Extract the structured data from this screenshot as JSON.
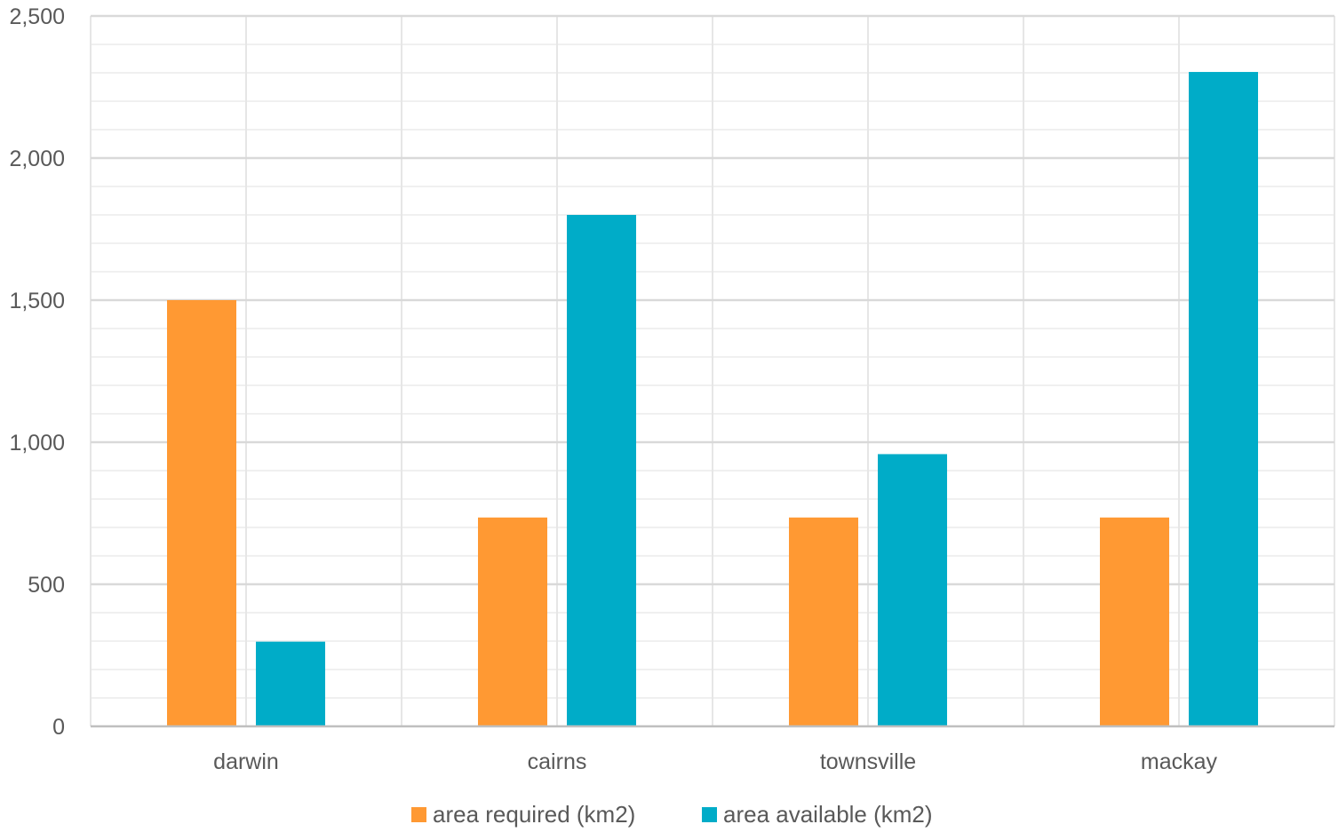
{
  "chart_data": {
    "type": "bar",
    "categories": [
      "darwin",
      "cairns",
      "townsville",
      "mackay"
    ],
    "series": [
      {
        "name": "area required (km2)",
        "values": [
          1500,
          735,
          735,
          735
        ],
        "color": "#FF9933"
      },
      {
        "name": "area available (km2)",
        "values": [
          298,
          1800,
          958,
          2303
        ],
        "color": "#00ACC8"
      }
    ],
    "yticks": [
      "0",
      "500",
      "1,000",
      "1,500",
      "2,000",
      "2,500"
    ],
    "ylim": [
      0,
      2500
    ],
    "minor_step": 100,
    "grid": true,
    "legend_position": "bottom"
  }
}
